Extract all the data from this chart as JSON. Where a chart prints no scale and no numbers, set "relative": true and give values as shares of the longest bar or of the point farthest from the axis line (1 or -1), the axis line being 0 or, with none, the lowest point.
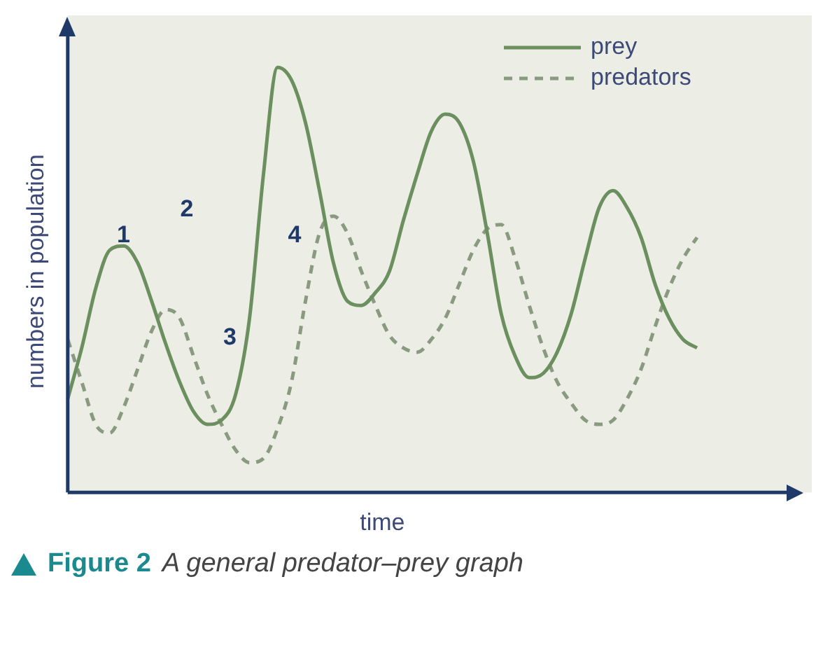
{
  "chart_data": {
    "type": "line",
    "title": "Figure 2",
    "subtitle": "A general predator–prey graph",
    "xlabel": "time",
    "ylabel": "numbers in population",
    "relative": true,
    "legend": "top right",
    "marker": "none",
    "grid": false,
    "annotations": [
      "1",
      "2",
      "3",
      "4"
    ],
    "categories": [
      null,
      null,
      null,
      null,
      null,
      null,
      null,
      null,
      null,
      null,
      null,
      null,
      null,
      null,
      null,
      null,
      null,
      null,
      null,
      null,
      null,
      null,
      null,
      null,
      null,
      null,
      null,
      null,
      null,
      null,
      null,
      null,
      null,
      null,
      null,
      null,
      null,
      null,
      null,
      null,
      null,
      null,
      null,
      null,
      null,
      null
    ],
    "series": [
      {
        "name": "prey",
        "color": "#6b8f5e",
        "line_style": "solid",
        "values": [
          0.22,
          0.34,
          0.48,
          0.57,
          0.58,
          0.54,
          0.45,
          0.35,
          0.26,
          0.19,
          0.16,
          0.17,
          0.23,
          0.41,
          0.75,
          1.0,
          0.97,
          0.87,
          0.71,
          0.54,
          0.45,
          0.44,
          0.47,
          0.52,
          0.64,
          0.75,
          0.85,
          0.89,
          0.87,
          0.78,
          0.61,
          0.42,
          0.32,
          0.27,
          0.28,
          0.33,
          0.42,
          0.55,
          0.67,
          0.71,
          0.67,
          0.6,
          0.49,
          0.41,
          0.36,
          0.34
        ]
      },
      {
        "name": "predators",
        "color": "#8a9a80",
        "line_style": "dashed",
        "values": [
          0.36,
          0.26,
          0.16,
          0.14,
          0.2,
          0.29,
          0.38,
          0.43,
          0.41,
          0.32,
          0.23,
          0.16,
          0.1,
          0.07,
          0.08,
          0.15,
          0.26,
          0.45,
          0.61,
          0.65,
          0.61,
          0.52,
          0.44,
          0.37,
          0.34,
          0.33,
          0.36,
          0.41,
          0.49,
          0.57,
          0.62,
          0.63,
          0.55,
          0.44,
          0.34,
          0.26,
          0.21,
          0.17,
          0.16,
          0.17,
          0.22,
          0.29,
          0.39,
          0.48,
          0.55,
          0.6
        ]
      }
    ]
  }
}
